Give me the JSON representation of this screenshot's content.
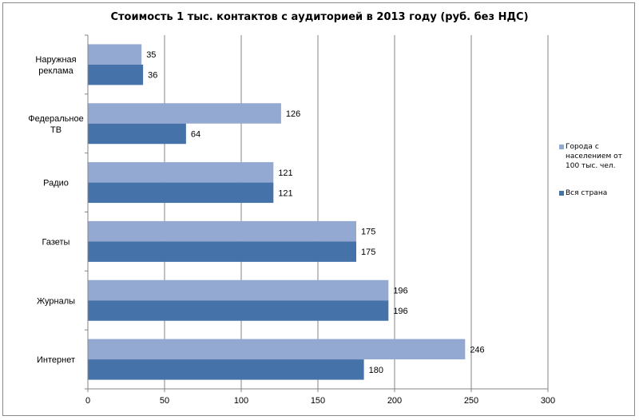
{
  "chart_data": {
    "type": "bar",
    "orientation": "horizontal",
    "title": "Стоимость 1 тыс. контактов с аудиторией в 2013 году (руб. без НДС)",
    "categories": [
      "Наружная реклама",
      "Федеральное ТВ",
      "Радио",
      "Газеты",
      "Журналы",
      "Интернет"
    ],
    "category_lines": [
      [
        "Наружная",
        "реклама"
      ],
      [
        "Федеральное",
        "ТВ"
      ],
      [
        "Радио"
      ],
      [
        "Газеты"
      ],
      [
        "Журналы"
      ],
      [
        "Интернет"
      ]
    ],
    "series": [
      {
        "name": "Города с населением от 100 тыс. чел.",
        "values": [
          35,
          126,
          121,
          175,
          196,
          246
        ],
        "color": "#94a9d2"
      },
      {
        "name": "Вся страна",
        "values": [
          36,
          64,
          121,
          175,
          196,
          180
        ],
        "color": "#4672aa"
      }
    ],
    "xlim": [
      0,
      300
    ],
    "x_ticks": [
      "0",
      "50",
      "100",
      "150",
      "200",
      "250",
      "300"
    ],
    "legend_position": "right",
    "grid": "vertical",
    "data_labels": true
  },
  "legend": {
    "series0_lines": [
      "Города с",
      "населением от",
      "100 тыс. чел."
    ],
    "series1_label": "Вся страна"
  }
}
